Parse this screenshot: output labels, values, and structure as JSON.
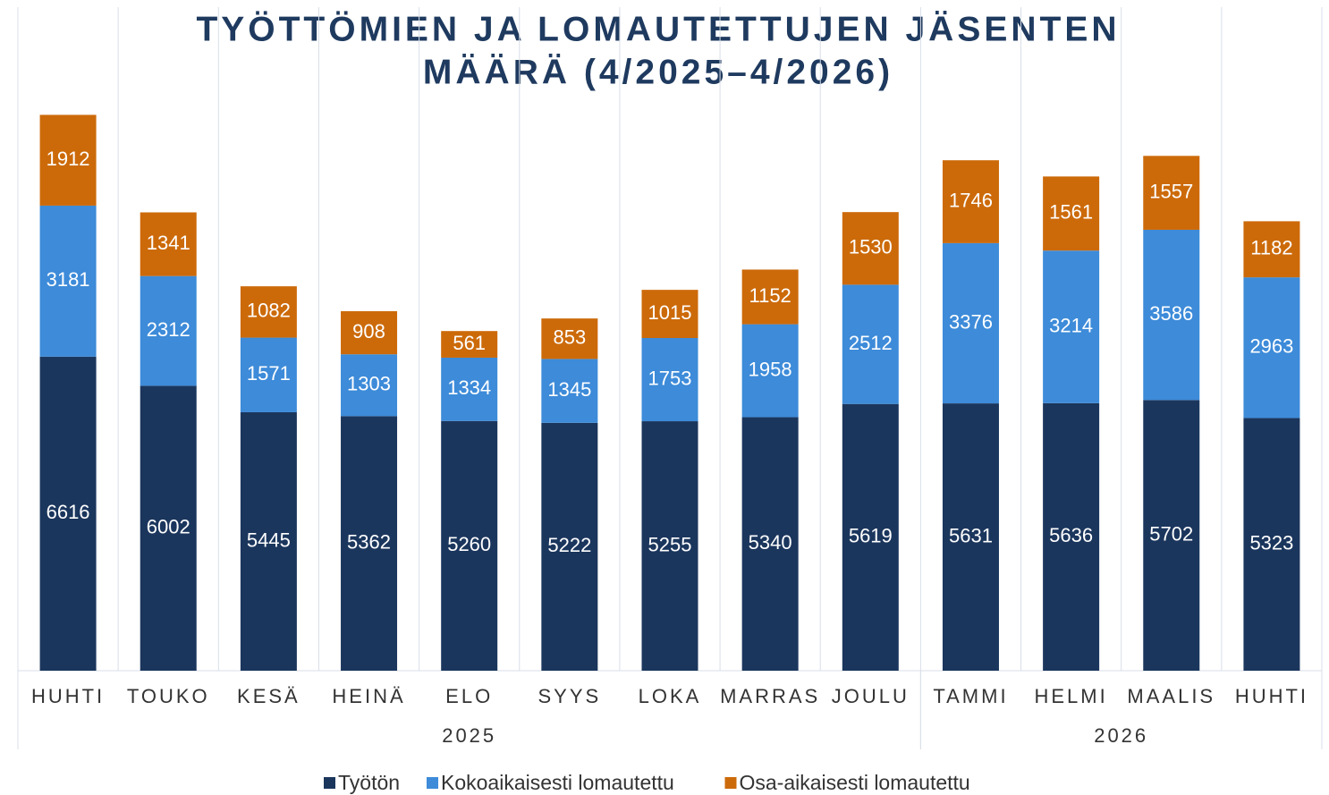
{
  "chart_data": {
    "type": "stacked_bar",
    "title": [
      "TYÖTTÖMIEN JA LOMAUTETTUJEN JÄSENTEN",
      "MÄÄRÄ (4/2025–4/2026)"
    ],
    "categories": [
      "HUHTI",
      "TOUKO",
      "KESÄ",
      "HEINÄ",
      "ELO",
      "SYYS",
      "LOKA",
      "MARRAS",
      "JOULU",
      "TAMMI",
      "HELMI",
      "MAALIS",
      "HUHTI"
    ],
    "category_groups": [
      "2025",
      "2025",
      "2025",
      "2025",
      "2025",
      "2025",
      "2025",
      "2025",
      "2025",
      "2026",
      "2026",
      "2026",
      "2026"
    ],
    "series": [
      {
        "name": "Työtön",
        "color": "#1b365d",
        "values": [
          6616,
          6002,
          5445,
          5362,
          5260,
          5222,
          5255,
          5340,
          5619,
          5631,
          5636,
          5702,
          5323
        ]
      },
      {
        "name": "Kokoaikaisesti lomautettu",
        "color": "#3d8bd9",
        "values": [
          3181,
          2312,
          1571,
          1303,
          1334,
          1345,
          1753,
          1958,
          2512,
          3376,
          3214,
          3586,
          2963
        ]
      },
      {
        "name": "Osa-aikaisesti lomautettu",
        "color": "#cc6a0a",
        "values": [
          1912,
          1341,
          1082,
          908,
          561,
          853,
          1015,
          1152,
          1530,
          1746,
          1561,
          1557,
          1182
        ]
      }
    ],
    "ylim": [
      0,
      12000
    ]
  }
}
